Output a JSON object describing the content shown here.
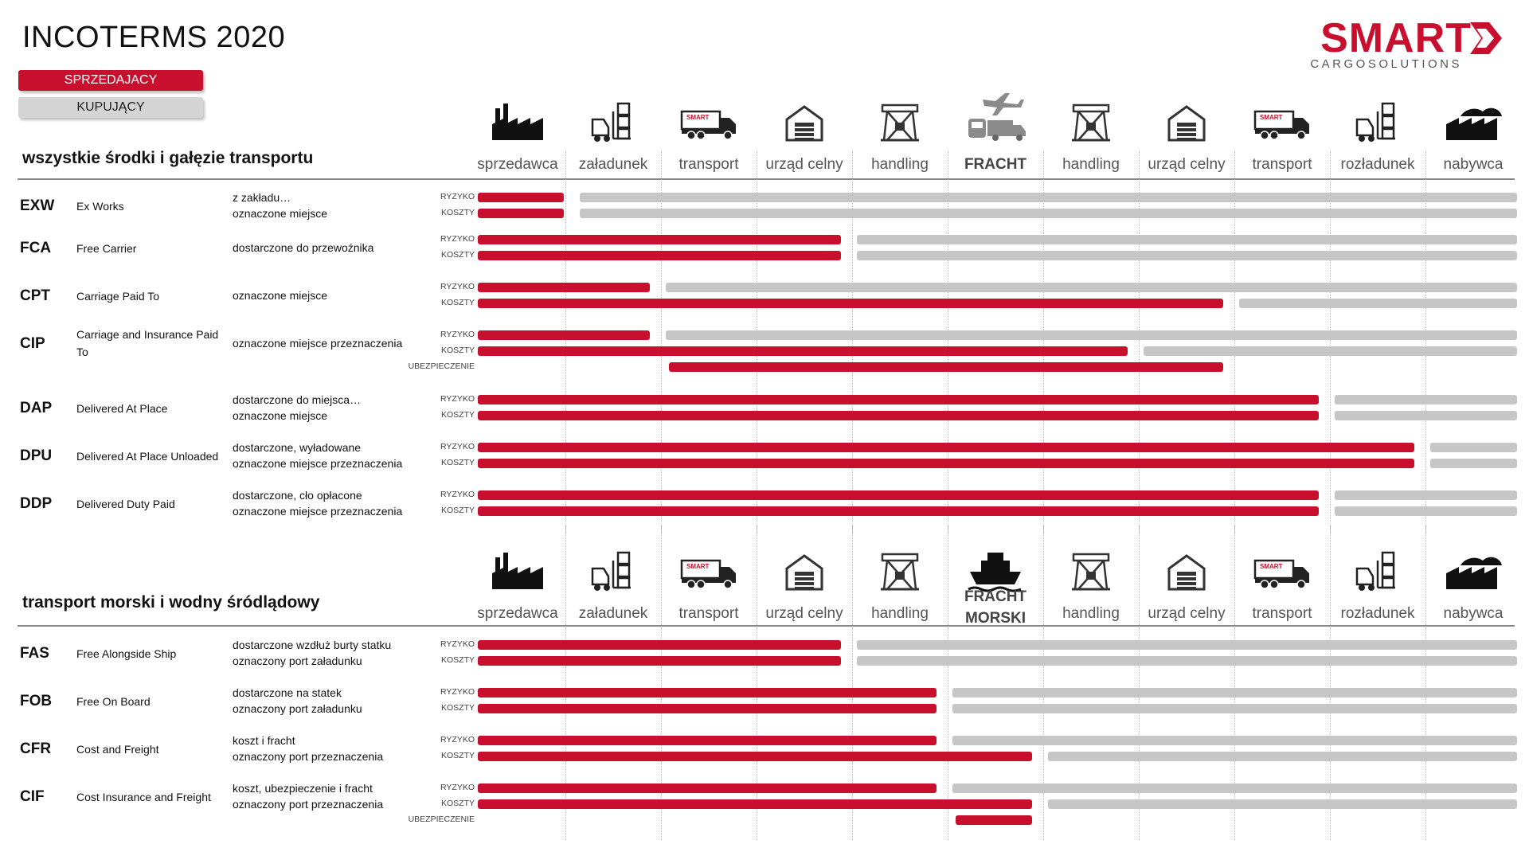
{
  "title": "INCOTERMS 2020",
  "legend": {
    "seller": "SPRZEDAJACY",
    "buyer": "KUPUJĄCY"
  },
  "logo": {
    "main": "SMART",
    "sub": "CARGOSOLUTIONS"
  },
  "colors": {
    "seller": "#c8102e",
    "buyer": "#c6c6c6",
    "divider": "#888888"
  },
  "row_labels": {
    "risk": "RYZYKO",
    "cost": "KOSZTY",
    "insurance": "UBEZPIECZENIE"
  },
  "sections": [
    {
      "title": "wszystkie środki i gałęzie transportu",
      "stages": [
        {
          "label": "sprzedawca",
          "icon": "factory-icon"
        },
        {
          "label": "załadunek",
          "icon": "forklift-icon"
        },
        {
          "label": "transport",
          "icon": "truck-icon"
        },
        {
          "label": "urząd celny",
          "icon": "warehouse-icon"
        },
        {
          "label": "handling",
          "icon": "crane-icon"
        },
        {
          "label": "FRACHT",
          "icon": "plane-train-truck-icon",
          "bold": true
        },
        {
          "label": "handling",
          "icon": "crane-icon"
        },
        {
          "label": "urząd celny",
          "icon": "warehouse-icon"
        },
        {
          "label": "transport",
          "icon": "truck-icon"
        },
        {
          "label": "rozładunek",
          "icon": "forklift-icon"
        },
        {
          "label": "nabywca",
          "icon": "buyer-factory-icon"
        }
      ],
      "terms": [
        {
          "code": "EXW",
          "name": "Ex Works",
          "desc": [
            "z zakładu…",
            "oznaczone miejsce"
          ],
          "risk": 0.9,
          "cost": 0.9
        },
        {
          "code": "FCA",
          "name": "Free Carrier",
          "desc": [
            "dostarczone do przewoźnika"
          ],
          "risk": 3.8,
          "cost": 3.8
        },
        {
          "code": "CPT",
          "name": "Carriage Paid To",
          "desc": [
            "oznaczone miejsce"
          ],
          "risk": 1.8,
          "cost": 7.8
        },
        {
          "code": "CIP",
          "name": "Carriage and Insurance Paid To",
          "desc": [
            "oznaczone miejsce przeznaczenia"
          ],
          "risk": 1.8,
          "cost": 6.8,
          "insurance": [
            2,
            7.8
          ]
        },
        {
          "code": "DAP",
          "name": "Delivered At Place",
          "desc": [
            "dostarczone do miejsca…",
            "oznaczone miejsce"
          ],
          "risk": 8.8,
          "cost": 8.8
        },
        {
          "code": "DPU",
          "name": "Delivered At Place Unloaded",
          "desc": [
            "dostarczone, wyładowane",
            "oznaczone miejsce przeznaczenia"
          ],
          "risk": 9.8,
          "cost": 9.8
        },
        {
          "code": "DDP",
          "name": "Delivered Duty Paid",
          "desc": [
            "dostarczone, cło opłacone",
            "oznaczone miejsce przeznaczenia"
          ],
          "risk": 8.8,
          "cost": 8.8
        }
      ]
    },
    {
      "title": "transport morski i wodny śródlądowy",
      "stages": [
        {
          "label": "sprzedawca",
          "icon": "factory-icon"
        },
        {
          "label": "załadunek",
          "icon": "forklift-icon"
        },
        {
          "label": "transport",
          "icon": "truck-icon"
        },
        {
          "label": "urząd celny",
          "icon": "warehouse-icon"
        },
        {
          "label": "handling",
          "icon": "crane-icon"
        },
        {
          "label": "FRACHT MORSKI",
          "icon": "ship-icon",
          "bold": true
        },
        {
          "label": "handling",
          "icon": "crane-icon"
        },
        {
          "label": "urząd celny",
          "icon": "warehouse-icon"
        },
        {
          "label": "transport",
          "icon": "truck-icon"
        },
        {
          "label": "rozładunek",
          "icon": "forklift-icon"
        },
        {
          "label": "nabywca",
          "icon": "buyer-factory-icon"
        }
      ],
      "terms": [
        {
          "code": "FAS",
          "name": "Free Alongside Ship",
          "desc": [
            "dostarczone wzdłuż burty statku",
            "oznaczony port załadunku"
          ],
          "risk": 3.8,
          "cost": 3.8
        },
        {
          "code": "FOB",
          "name": "Free On Board",
          "desc": [
            "dostarczone na statek",
            "oznaczony port załadunku"
          ],
          "risk": 4.8,
          "cost": 4.8
        },
        {
          "code": "CFR",
          "name": "Cost and Freight",
          "desc": [
            "koszt i fracht",
            "oznaczony port przeznaczenia"
          ],
          "risk": 4.8,
          "cost": 5.8
        },
        {
          "code": "CIF",
          "name": "Cost Insurance and Freight",
          "desc": [
            "koszt, ubezpieczenie i fracht",
            "oznaczony port przeznaczenia"
          ],
          "risk": 4.8,
          "cost": 5.8,
          "insurance": [
            5,
            5.8
          ]
        }
      ]
    }
  ]
}
